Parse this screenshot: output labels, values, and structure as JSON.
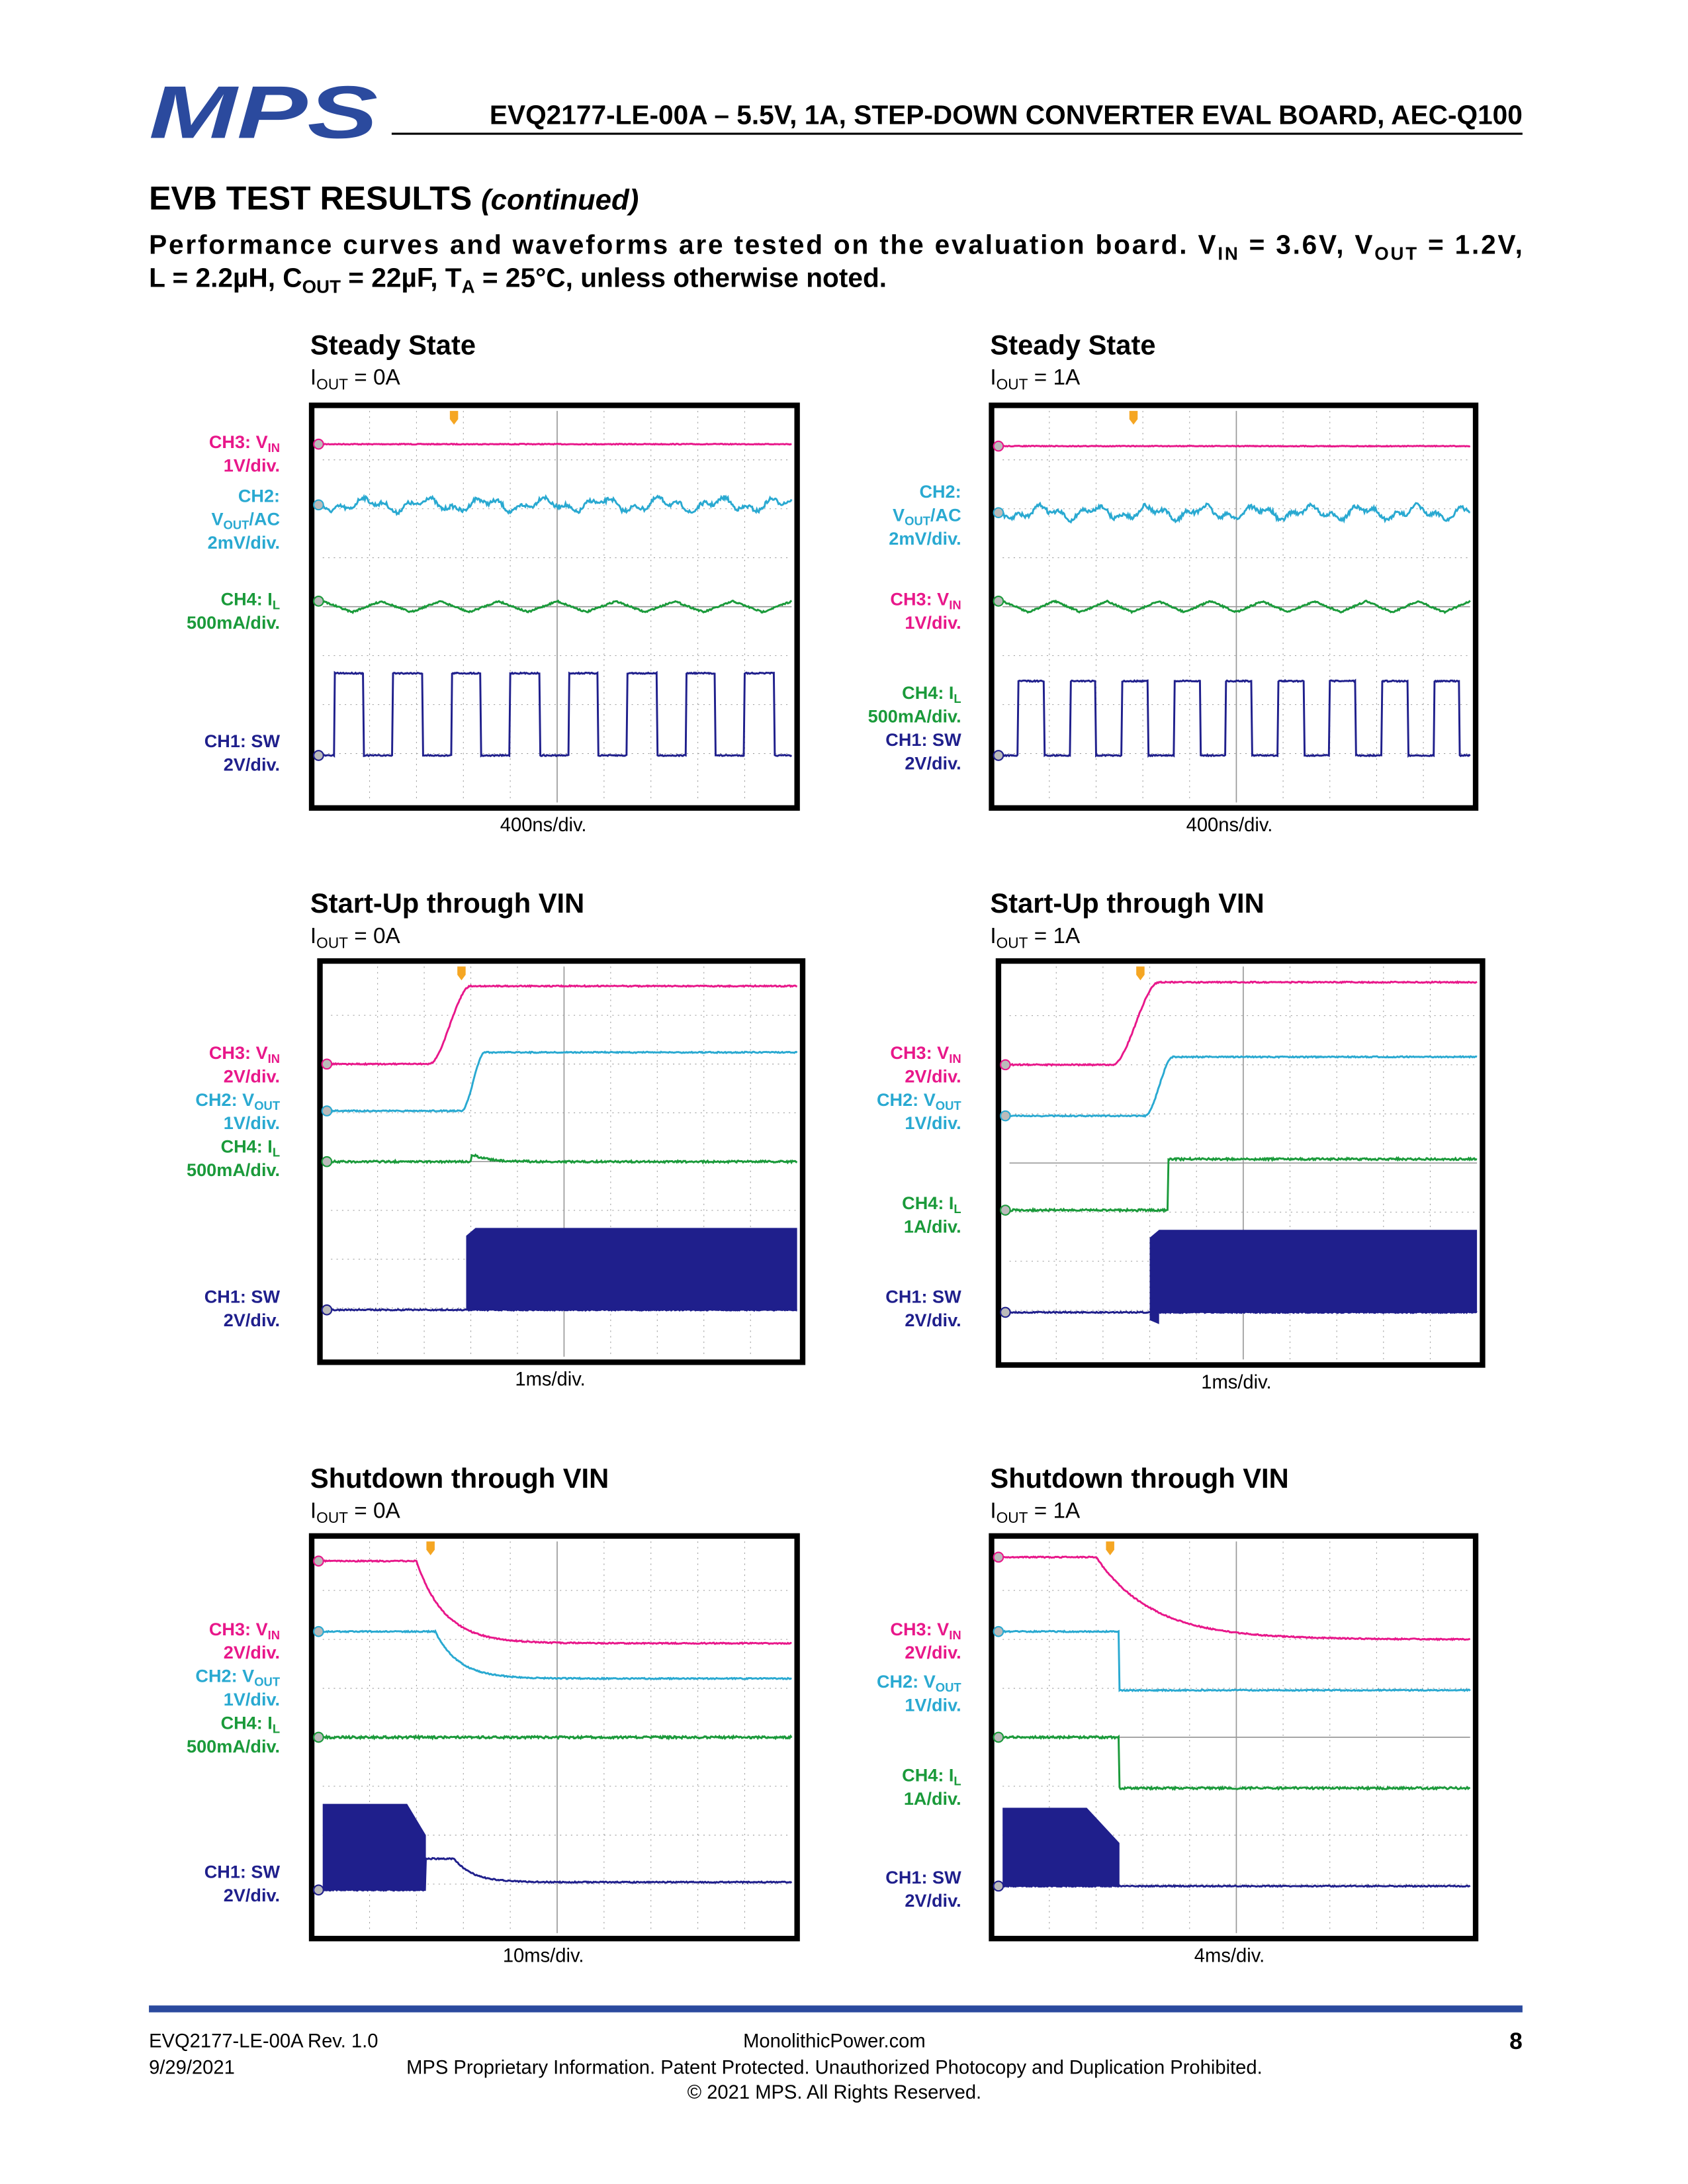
{
  "header": {
    "logo": "MPS",
    "title": "EVQ2177-LE-00A – 5.5V, 1A, STEP-DOWN CONVERTER EVAL BOARD, AEC-Q100"
  },
  "section": {
    "title": "EVB TEST RESULTS",
    "title_suffix": "(continued)",
    "intro": [
      [
        "Performance curves and waveforms are tested on the evaluation board. V",
        "IN",
        " = 3.6V, V",
        "OUT",
        " = 1.2V,"
      ],
      [
        "L = 2.2µH, C",
        "OUT",
        " = 22µF, T",
        "A",
        " = 25°C, unless otherwise noted."
      ]
    ]
  },
  "panels": [
    {
      "title": "Steady State",
      "condition": [
        "I",
        "OUT",
        " = 0A"
      ],
      "timebase": "400ns/div.",
      "channels": [
        {
          "color": "#e8178a",
          "lines": [
            [
              "CH3: V",
              "IN"
            ],
            [
              "1V/div."
            ]
          ]
        },
        {
          "color": "#29a9d1",
          "lines": [
            [
              "CH2:"
            ],
            [
              "V",
              "OUT",
              "/AC"
            ],
            [
              "2mV/div."
            ]
          ]
        },
        {
          "color": "#1a9a3a",
          "lines": [
            [
              "CH4: I",
              "L"
            ],
            [
              "500mA/div."
            ]
          ]
        },
        {
          "color": "#1f1f8c",
          "lines": [
            [
              "CH1: SW"
            ],
            [
              "2V/div."
            ]
          ]
        }
      ]
    },
    {
      "title": "Steady State",
      "condition": [
        "I",
        "OUT",
        " = 1A"
      ],
      "timebase": "400ns/div.",
      "channels": [
        {
          "color": "#29a9d1",
          "lines": [
            [
              "CH2:"
            ],
            [
              "V",
              "OUT",
              "/AC"
            ],
            [
              "2mV/div."
            ]
          ]
        },
        {
          "color": "#e8178a",
          "lines": [
            [
              "CH3: V",
              "IN"
            ],
            [
              "1V/div."
            ]
          ]
        },
        {
          "color": "#1a9a3a",
          "lines": [
            [
              "CH4: I",
              "L"
            ],
            [
              "500mA/div."
            ]
          ]
        },
        {
          "color": "#1f1f8c",
          "lines": [
            [
              "CH1: SW"
            ],
            [
              "2V/div."
            ]
          ]
        }
      ]
    },
    {
      "title": "Start-Up through VIN",
      "condition": [
        "I",
        "OUT",
        " = 0A"
      ],
      "timebase": "1ms/div.",
      "channels": [
        {
          "color": "#e8178a",
          "lines": [
            [
              "CH3: V",
              "IN"
            ],
            [
              "2V/div."
            ]
          ]
        },
        {
          "color": "#29a9d1",
          "lines": [
            [
              "CH2: V",
              "OUT"
            ],
            [
              "1V/div."
            ]
          ]
        },
        {
          "color": "#1a9a3a",
          "lines": [
            [
              "CH4: I",
              "L"
            ],
            [
              "500mA/div."
            ]
          ]
        },
        {
          "color": "#1f1f8c",
          "lines": [
            [
              "CH1: SW"
            ],
            [
              "2V/div."
            ]
          ]
        }
      ]
    },
    {
      "title": "Start-Up through VIN",
      "condition": [
        "I",
        "OUT",
        " = 1A"
      ],
      "timebase": "1ms/div.",
      "channels": [
        {
          "color": "#e8178a",
          "lines": [
            [
              "CH3: V",
              "IN"
            ],
            [
              "2V/div."
            ]
          ]
        },
        {
          "color": "#29a9d1",
          "lines": [
            [
              "CH2: V",
              "OUT"
            ],
            [
              "1V/div."
            ]
          ]
        },
        {
          "color": "#1a9a3a",
          "lines": [
            [
              "CH4: I",
              "L"
            ],
            [
              "1A/div."
            ]
          ]
        },
        {
          "color": "#1f1f8c",
          "lines": [
            [
              "CH1: SW"
            ],
            [
              "2V/div."
            ]
          ]
        }
      ]
    },
    {
      "title": "Shutdown through VIN",
      "condition": [
        "I",
        "OUT",
        " = 0A"
      ],
      "timebase": "10ms/div.",
      "channels": [
        {
          "color": "#e8178a",
          "lines": [
            [
              "CH3: V",
              "IN"
            ],
            [
              "2V/div."
            ]
          ]
        },
        {
          "color": "#29a9d1",
          "lines": [
            [
              "CH2: V",
              "OUT"
            ],
            [
              "1V/div."
            ]
          ]
        },
        {
          "color": "#1a9a3a",
          "lines": [
            [
              "CH4: I",
              "L"
            ],
            [
              "500mA/div."
            ]
          ]
        },
        {
          "color": "#1f1f8c",
          "lines": [
            [
              "CH1: SW"
            ],
            [
              "2V/div."
            ]
          ]
        }
      ]
    },
    {
      "title": "Shutdown through VIN",
      "condition": [
        "I",
        "OUT",
        " = 1A"
      ],
      "timebase": "4ms/div.",
      "channels": [
        {
          "color": "#e8178a",
          "lines": [
            [
              "CH3: V",
              "IN"
            ],
            [
              "2V/div."
            ]
          ]
        },
        {
          "color": "#29a9d1",
          "lines": [
            [
              "CH2: V",
              "OUT"
            ],
            [
              "1V/div."
            ]
          ]
        },
        {
          "color": "#1a9a3a",
          "lines": [
            [
              "CH4: I",
              "L"
            ],
            [
              "1A/div."
            ]
          ]
        },
        {
          "color": "#1f1f8c",
          "lines": [
            [
              "CH1: SW"
            ],
            [
              "2V/div."
            ]
          ]
        }
      ]
    }
  ],
  "footer": {
    "doc": "EVQ2177-LE-00A Rev. 1.0",
    "date": "9/29/2021",
    "website": "MonolithicPower.com",
    "notice": "MPS Proprietary Information. Patent Protected. Unauthorized Photocopy and Duplication Prohibited.",
    "copyright": "© 2021 MPS. All Rights Reserved.",
    "page": "8"
  }
}
